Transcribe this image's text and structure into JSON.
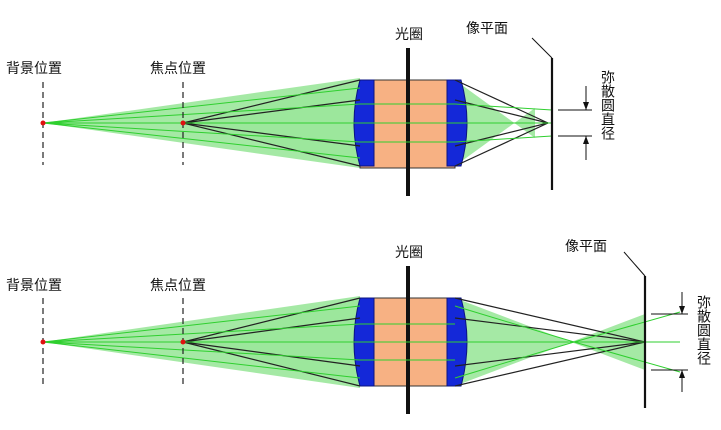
{
  "colors": {
    "background": "#ffffff",
    "lens_fill": "#f7b183",
    "lens_element": "#1428d8",
    "light_cone_fill": "#9be79b",
    "ray_green": "#2fcf2f",
    "ray_dark": "#222222",
    "point_red": "#e01010"
  },
  "top": {
    "background_label": "背景位置",
    "focus_label": "焦点位置",
    "aperture_label": "光圈",
    "image_plane_label": "像平面",
    "coc_label": "弥散圆直径"
  },
  "bottom": {
    "background_label": "背景位置",
    "focus_label": "焦点位置",
    "aperture_label": "光圈",
    "image_plane_label": "像平面",
    "coc_label": "弥散圆直径"
  }
}
